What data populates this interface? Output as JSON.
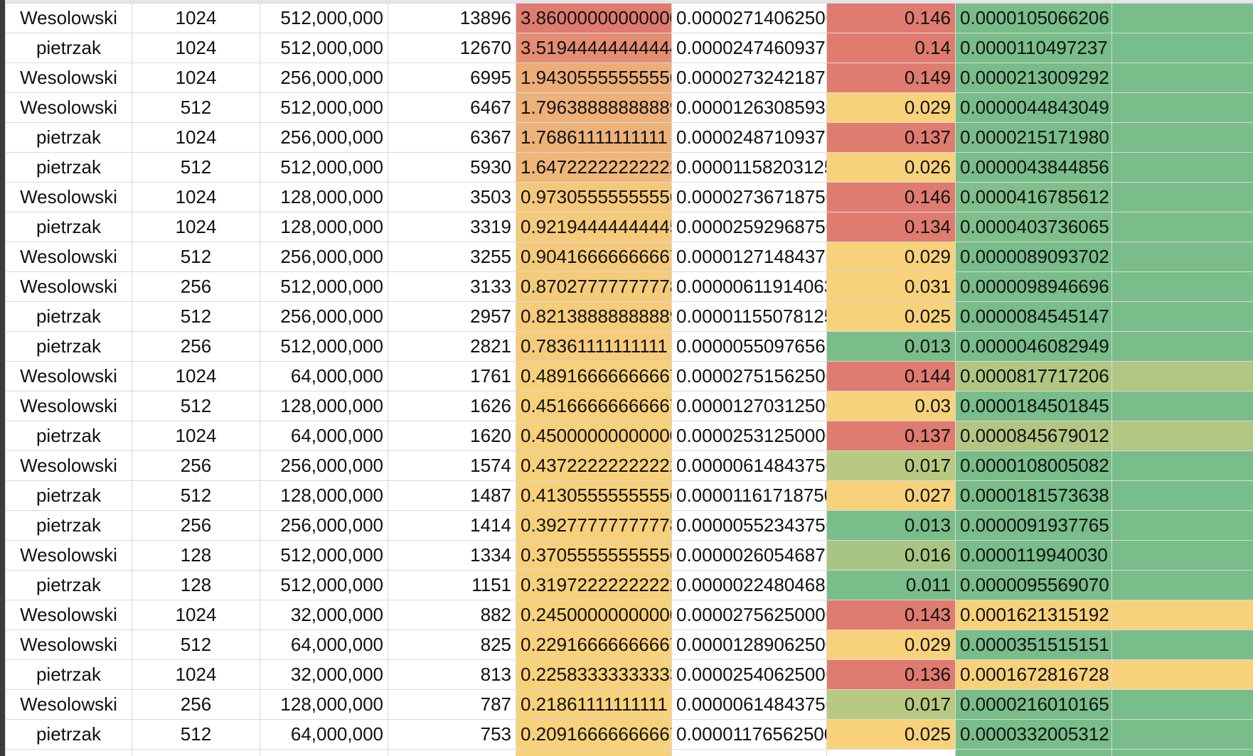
{
  "scale_colors": {
    "red": "#e07b70",
    "orange": "#ecad78",
    "yellow": "#f8d27a",
    "light_green": "#b8c982",
    "green": "#79bd8a"
  },
  "rows": [
    {
      "name": "Wesolowski",
      "n": "1024",
      "size": "512,000,000",
      "time": "13896",
      "sec": "3.86000000000000",
      "per": "0.00002714062500",
      "ratio": "0.146",
      "last": "0.0000105066206",
      "c_sec": "#e07b70",
      "c_ratio": "#e07b70",
      "c_last": "#79bd8a",
      "c_cut": "#79bd8a"
    },
    {
      "name": "pietrzak",
      "n": "1024",
      "size": "512,000,000",
      "time": "12670",
      "sec": "3.51944444444444",
      "per": "0.00002474609375",
      "ratio": "0.14",
      "last": "0.0000110497237",
      "c_sec": "#e48d72",
      "c_ratio": "#e07b70",
      "c_last": "#79bd8a",
      "c_cut": "#79bd8a"
    },
    {
      "name": "Wesolowski",
      "n": "1024",
      "size": "256,000,000",
      "time": "6995",
      "sec": "1.94305555555556",
      "per": "0.00002732421875",
      "ratio": "0.149",
      "last": "0.0000213009292",
      "c_sec": "#ecad78",
      "c_ratio": "#e07b70",
      "c_last": "#79bd8a",
      "c_cut": "#79bd8a"
    },
    {
      "name": "Wesolowski",
      "n": "512",
      "size": "512,000,000",
      "time": "6467",
      "sec": "1.79638888888889",
      "per": "0.00001263085938",
      "ratio": "0.029",
      "last": "0.0000044843049",
      "c_sec": "#edb179",
      "c_ratio": "#f8d27a",
      "c_last": "#79bd8a",
      "c_cut": "#79bd8a"
    },
    {
      "name": "pietrzak",
      "n": "1024",
      "size": "256,000,000",
      "time": "6367",
      "sec": "1.76861111111111",
      "per": "0.00002487109375",
      "ratio": "0.137",
      "last": "0.0000215171980",
      "c_sec": "#edb279",
      "c_ratio": "#e07b70",
      "c_last": "#79bd8a",
      "c_cut": "#79bd8a"
    },
    {
      "name": "pietrzak",
      "n": "512",
      "size": "512,000,000",
      "time": "5930",
      "sec": "1.64722222222222",
      "per": "0.00001158203125",
      "ratio": "0.026",
      "last": "0.0000043844856",
      "c_sec": "#eeb679",
      "c_ratio": "#f8d27a",
      "c_last": "#79bd8a",
      "c_cut": "#79bd8a"
    },
    {
      "name": "Wesolowski",
      "n": "1024",
      "size": "128,000,000",
      "time": "3503",
      "sec": "0.97305555555556",
      "per": "0.00002736718750",
      "ratio": "0.146",
      "last": "0.0000416785612",
      "c_sec": "#f4c87a",
      "c_ratio": "#e07b70",
      "c_last": "#7fbf89",
      "c_cut": "#79bd8a"
    },
    {
      "name": "pietrzak",
      "n": "1024",
      "size": "128,000,000",
      "time": "3319",
      "sec": "0.92194444444445",
      "per": "0.00002592968750",
      "ratio": "0.134",
      "last": "0.0000403736065",
      "c_sec": "#f5ca7a",
      "c_ratio": "#e07b70",
      "c_last": "#7fbf89",
      "c_cut": "#79bd8a"
    },
    {
      "name": "Wesolowski",
      "n": "512",
      "size": "256,000,000",
      "time": "3255",
      "sec": "0.90416666666667",
      "per": "0.00001271484375",
      "ratio": "0.029",
      "last": "0.0000089093702",
      "c_sec": "#f5ca7a",
      "c_ratio": "#f8d27a",
      "c_last": "#79bd8a",
      "c_cut": "#79bd8a"
    },
    {
      "name": "Wesolowski",
      "n": "256",
      "size": "512,000,000",
      "time": "3133",
      "sec": "0.87027777777778",
      "per": "0.00000611914063",
      "ratio": "0.031",
      "last": "0.0000098946696",
      "c_sec": "#f5cb7a",
      "c_ratio": "#f8d27a",
      "c_last": "#79bd8a",
      "c_cut": "#79bd8a"
    },
    {
      "name": "pietrzak",
      "n": "512",
      "size": "256,000,000",
      "time": "2957",
      "sec": "0.82138888888889",
      "per": "0.00001155078125",
      "ratio": "0.025",
      "last": "0.0000084545147",
      "c_sec": "#f6cc7a",
      "c_ratio": "#f8d27a",
      "c_last": "#79bd8a",
      "c_cut": "#79bd8a"
    },
    {
      "name": "pietrzak",
      "n": "256",
      "size": "512,000,000",
      "time": "2821",
      "sec": "0.78361111111111",
      "per": "0.00000550976563",
      "ratio": "0.013",
      "last": "0.0000046082949",
      "c_sec": "#f6cc7a",
      "c_ratio": "#79bd8a",
      "c_last": "#79bd8a",
      "c_cut": "#79bd8a"
    },
    {
      "name": "Wesolowski",
      "n": "1024",
      "size": "64,000,000",
      "time": "1761",
      "sec": "0.48916666666667",
      "per": "0.00002751562500",
      "ratio": "0.144",
      "last": "0.0000817717206",
      "c_sec": "#f7d07a",
      "c_ratio": "#e07b70",
      "c_last": "#b0c682",
      "c_cut": "#b0c682"
    },
    {
      "name": "Wesolowski",
      "n": "512",
      "size": "128,000,000",
      "time": "1626",
      "sec": "0.45166666666667",
      "per": "0.00001270312500",
      "ratio": "0.03",
      "last": "0.0000184501845",
      "c_sec": "#f7d07a",
      "c_ratio": "#f8d27a",
      "c_last": "#79bd8a",
      "c_cut": "#79bd8a"
    },
    {
      "name": "pietrzak",
      "n": "1024",
      "size": "64,000,000",
      "time": "1620",
      "sec": "0.45000000000000",
      "per": "0.00002531250000",
      "ratio": "0.137",
      "last": "0.0000845679012",
      "c_sec": "#f7d07a",
      "c_ratio": "#e07b70",
      "c_last": "#b4c782",
      "c_cut": "#b4c782"
    },
    {
      "name": "Wesolowski",
      "n": "256",
      "size": "256,000,000",
      "time": "1574",
      "sec": "0.43722222222222",
      "per": "0.00000614843750",
      "ratio": "0.017",
      "last": "0.0000108005082",
      "c_sec": "#f7d07a",
      "c_ratio": "#b8c982",
      "c_last": "#79bd8a",
      "c_cut": "#79bd8a"
    },
    {
      "name": "pietrzak",
      "n": "512",
      "size": "128,000,000",
      "time": "1487",
      "sec": "0.41305555555556",
      "per": "0.00001161718750",
      "ratio": "0.027",
      "last": "0.0000181573638",
      "c_sec": "#f7d07a",
      "c_ratio": "#f8d27a",
      "c_last": "#79bd8a",
      "c_cut": "#79bd8a"
    },
    {
      "name": "pietrzak",
      "n": "256",
      "size": "256,000,000",
      "time": "1414",
      "sec": "0.39277777777778",
      "per": "0.00000552343750",
      "ratio": "0.013",
      "last": "0.0000091937765",
      "c_sec": "#f7d07a",
      "c_ratio": "#79bd8a",
      "c_last": "#79bd8a",
      "c_cut": "#79bd8a"
    },
    {
      "name": "Wesolowski",
      "n": "128",
      "size": "512,000,000",
      "time": "1334",
      "sec": "0.37055555555556",
      "per": "0.00000260546875",
      "ratio": "0.016",
      "last": "0.0000119940030",
      "c_sec": "#f7d17a",
      "c_ratio": "#a9c584",
      "c_last": "#79bd8a",
      "c_cut": "#79bd8a"
    },
    {
      "name": "pietrzak",
      "n": "128",
      "size": "512,000,000",
      "time": "1151",
      "sec": "0.31972222222222",
      "per": "0.00000224804688",
      "ratio": "0.011",
      "last": "0.0000095569070",
      "c_sec": "#f7d17a",
      "c_ratio": "#79bd8a",
      "c_last": "#79bd8a",
      "c_cut": "#79bd8a"
    },
    {
      "name": "Wesolowski",
      "n": "1024",
      "size": "32,000,000",
      "time": "882",
      "sec": "0.24500000000000",
      "per": "0.00002756250000",
      "ratio": "0.143",
      "last": "0.0001621315192",
      "c_sec": "#f8d27a",
      "c_ratio": "#e07b70",
      "c_last": "#f8d27a",
      "c_cut": "#f8d27a"
    },
    {
      "name": "Wesolowski",
      "n": "512",
      "size": "64,000,000",
      "time": "825",
      "sec": "0.22916666666667",
      "per": "0.00001289062500",
      "ratio": "0.029",
      "last": "0.0000351515151",
      "c_sec": "#f8d27a",
      "c_ratio": "#f8d27a",
      "c_last": "#79bd8a",
      "c_cut": "#79bd8a"
    },
    {
      "name": "pietrzak",
      "n": "1024",
      "size": "32,000,000",
      "time": "813",
      "sec": "0.22583333333333",
      "per": "0.00002540625000",
      "ratio": "0.136",
      "last": "0.0001672816728",
      "c_sec": "#f8d27a",
      "c_ratio": "#e07b70",
      "c_last": "#f8d27a",
      "c_cut": "#f8d27a"
    },
    {
      "name": "Wesolowski",
      "n": "256",
      "size": "128,000,000",
      "time": "787",
      "sec": "0.21861111111111",
      "per": "0.00000614843750",
      "ratio": "0.017",
      "last": "0.0000216010165",
      "c_sec": "#f8d27a",
      "c_ratio": "#b8c982",
      "c_last": "#79bd8a",
      "c_cut": "#79bd8a"
    },
    {
      "name": "pietrzak",
      "n": "512",
      "size": "64,000,000",
      "time": "753",
      "sec": "0.20916666666667",
      "per": "0.00001176562500",
      "ratio": "0.025",
      "last": "0.0000332005312",
      "c_sec": "#f8d27a",
      "c_ratio": "#f8d27a",
      "c_last": "#79bd8a",
      "c_cut": "#79bd8a"
    },
    {
      "name": "",
      "n": "",
      "size": "",
      "time": "",
      "sec": "",
      "per": "",
      "ratio": "",
      "last": "",
      "c_sec": "#f8d27a",
      "c_ratio": "#ffffff",
      "c_last": "#79bd8a",
      "c_cut": "#79bd8a"
    }
  ]
}
